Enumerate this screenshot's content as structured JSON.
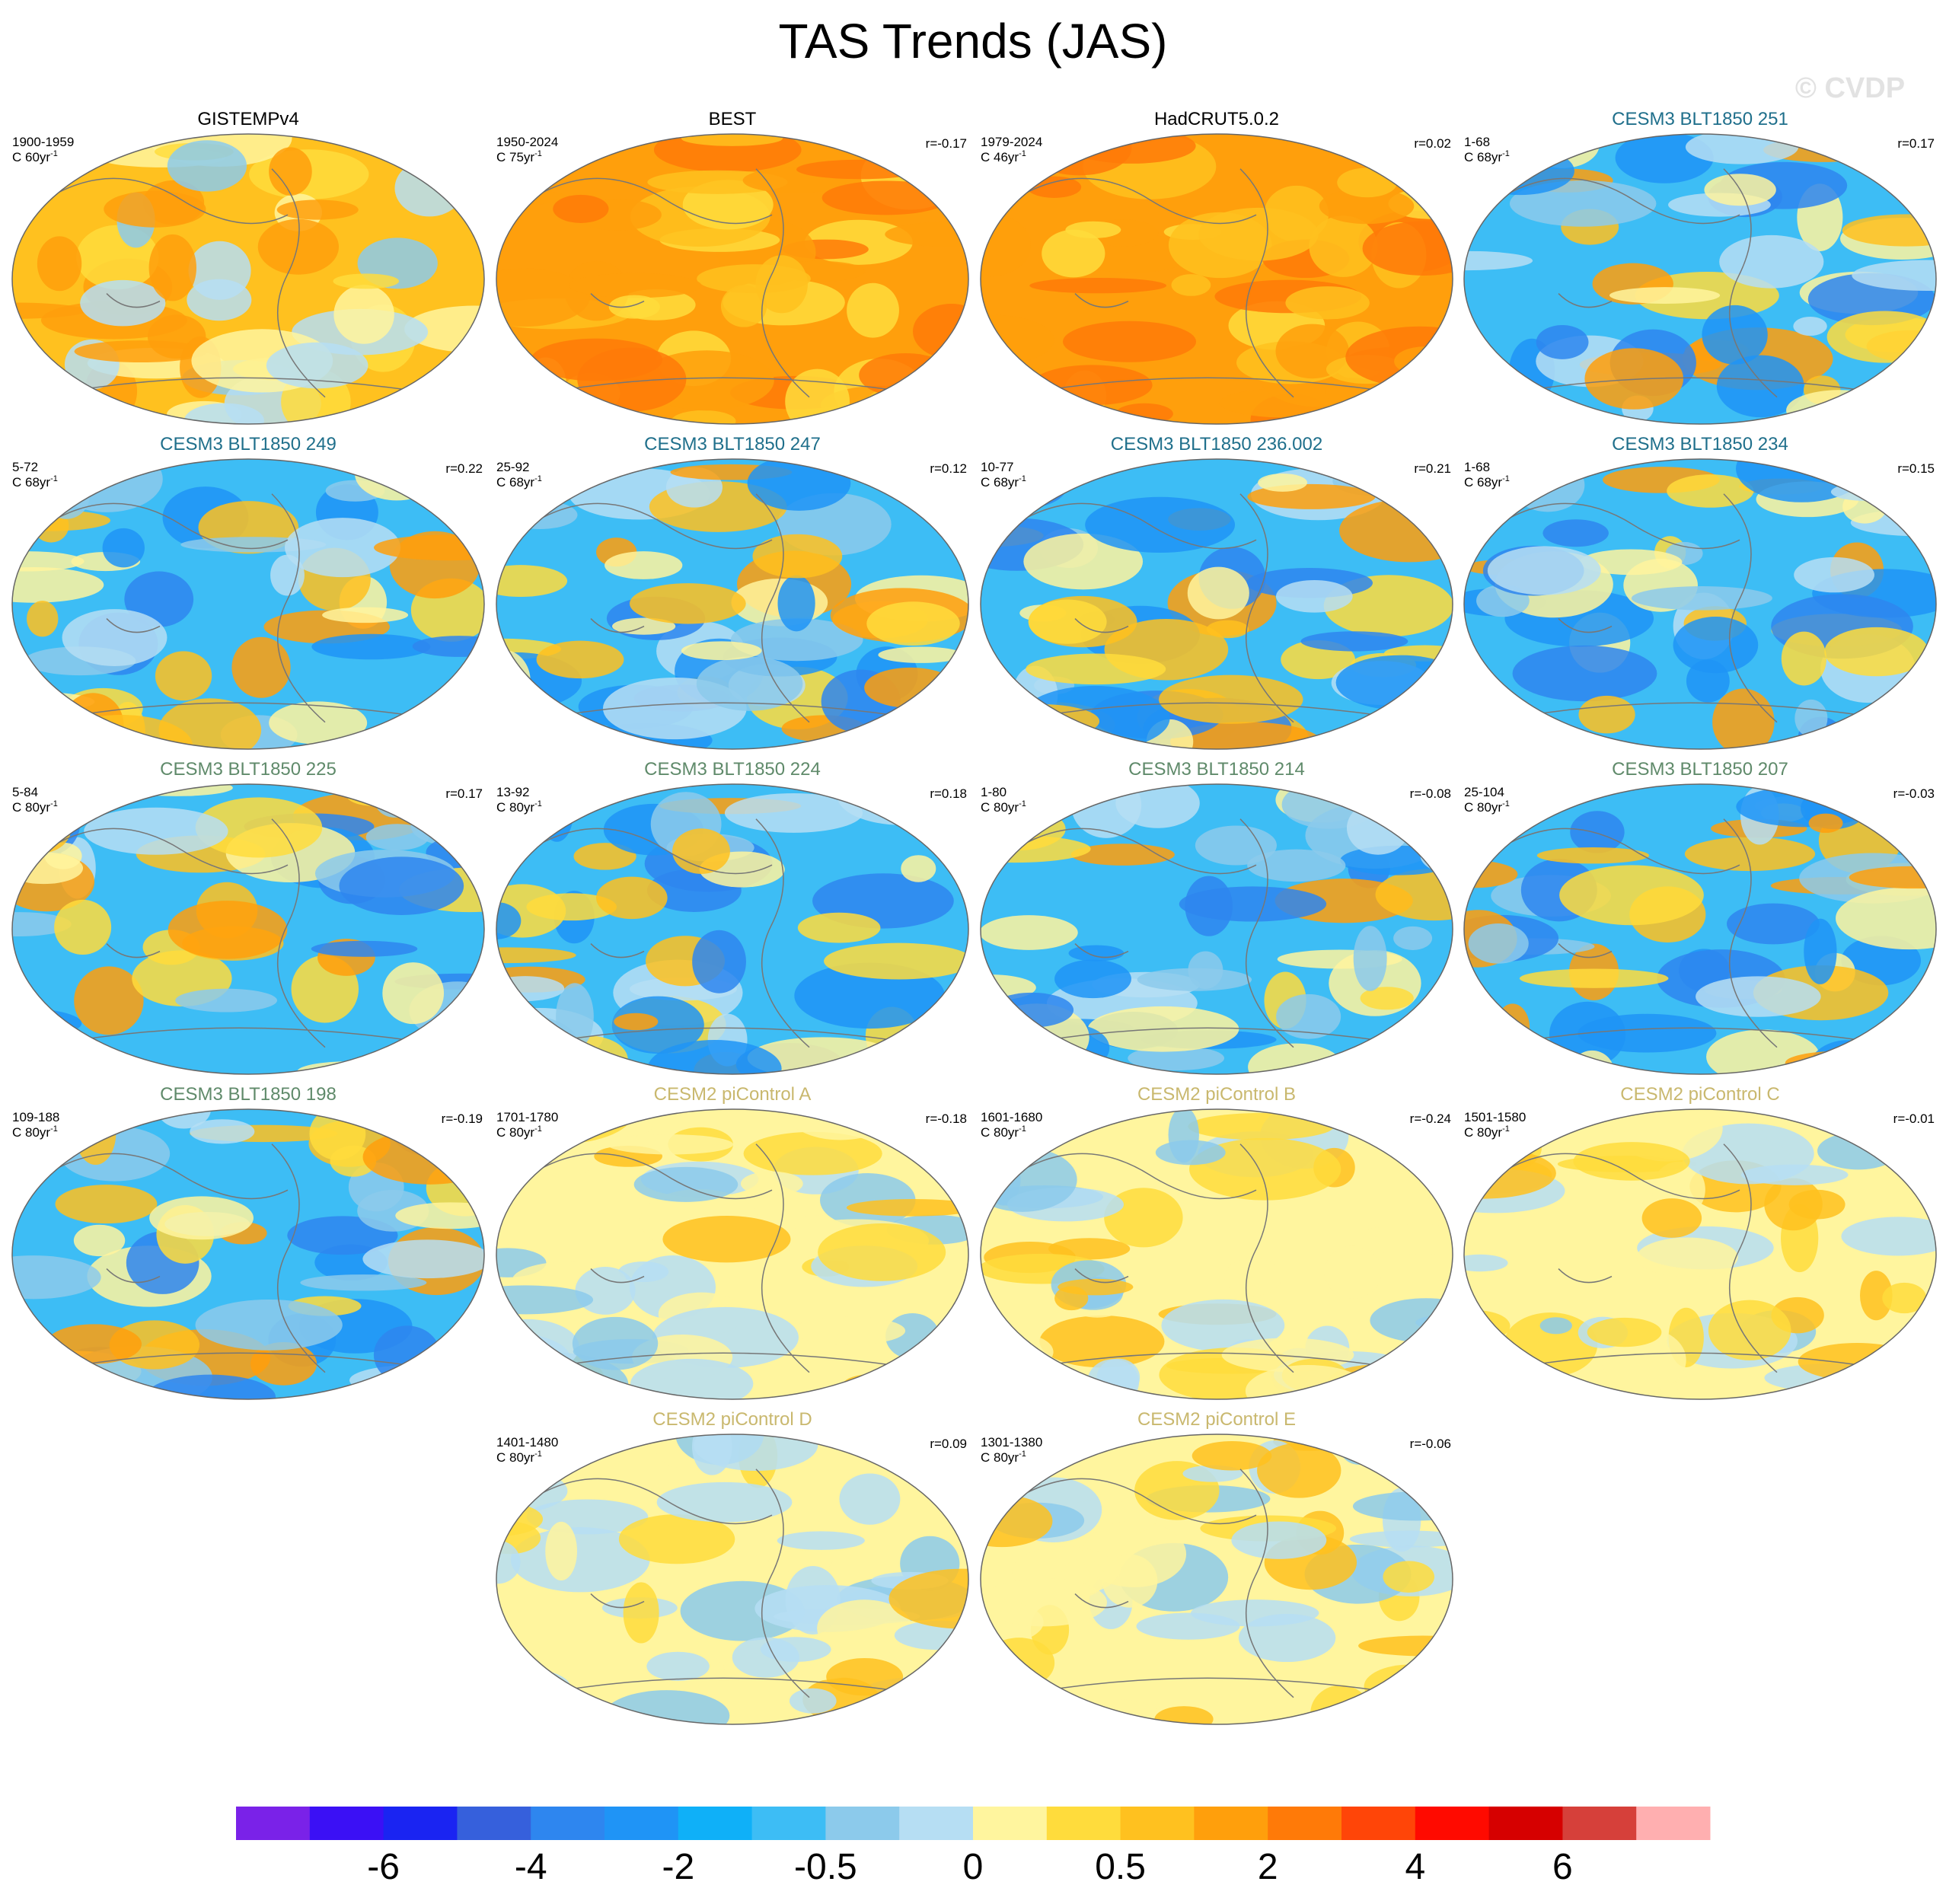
{
  "title": "TAS Trends (JAS)",
  "watermark": "© CVDP",
  "panels": [
    {
      "title": "GISTEMPv4",
      "title_color": "#000000",
      "period": "1900-1959",
      "units": "C 60yr",
      "units_sup": "-1"
    },
    {
      "title": "BEST",
      "title_color": "#000000",
      "period": "1950-2024",
      "units": "C 75yr",
      "units_sup": "-1",
      "r": "r=-0.17"
    },
    {
      "title": "HadCRUT5.0.2",
      "title_color": "#000000",
      "period": "1979-2024",
      "units": "C 46yr",
      "units_sup": "-1",
      "r": "r=0.02"
    },
    {
      "title": "CESM3 BLT1850 251",
      "title_color": "#1f6f8b",
      "period": "1-68",
      "units": "C 68yr",
      "units_sup": "-1",
      "r": "r=0.17"
    },
    {
      "title": "CESM3 BLT1850 249",
      "title_color": "#1f6f8b",
      "period": "5-72",
      "units": "C 68yr",
      "units_sup": "-1",
      "r": "r=0.22"
    },
    {
      "title": "CESM3 BLT1850 247",
      "title_color": "#1f6f8b",
      "period": "25-92",
      "units": "C 68yr",
      "units_sup": "-1",
      "r": "r=0.12"
    },
    {
      "title": "CESM3 BLT1850 236.002",
      "title_color": "#1f6f8b",
      "period": "10-77",
      "units": "C 68yr",
      "units_sup": "-1",
      "r": "r=0.21"
    },
    {
      "title": "CESM3 BLT1850 234",
      "title_color": "#1f6f8b",
      "period": "1-68",
      "units": "C 68yr",
      "units_sup": "-1",
      "r": "r=0.15"
    },
    {
      "title": "CESM3 BLT1850 225",
      "title_color": "#5f8a6a",
      "period": "5-84",
      "units": "C 80yr",
      "units_sup": "-1",
      "r": "r=0.17"
    },
    {
      "title": "CESM3 BLT1850 224",
      "title_color": "#5f8a6a",
      "period": "13-92",
      "units": "C 80yr",
      "units_sup": "-1",
      "r": "r=0.18"
    },
    {
      "title": "CESM3 BLT1850 214",
      "title_color": "#5f8a6a",
      "period": "1-80",
      "units": "C 80yr",
      "units_sup": "-1",
      "r": "r=-0.08"
    },
    {
      "title": "CESM3 BLT1850 207",
      "title_color": "#5f8a6a",
      "period": "25-104",
      "units": "C 80yr",
      "units_sup": "-1",
      "r": "r=-0.03"
    },
    {
      "title": "CESM3 BLT1850 198",
      "title_color": "#5f8a6a",
      "period": "109-188",
      "units": "C 80yr",
      "units_sup": "-1",
      "r": "r=-0.19"
    },
    {
      "title": "CESM2 piControl A",
      "title_color": "#c9b86e",
      "period": "1701-1780",
      "units": "C 80yr",
      "units_sup": "-1",
      "r": "r=-0.18"
    },
    {
      "title": "CESM2 piControl B",
      "title_color": "#c9b86e",
      "period": "1601-1680",
      "units": "C 80yr",
      "units_sup": "-1",
      "r": "r=-0.24"
    },
    {
      "title": "CESM2 piControl C",
      "title_color": "#c9b86e",
      "period": "1501-1580",
      "units": "C 80yr",
      "units_sup": "-1",
      "r": "r=-0.01"
    },
    {
      "title": "CESM2 piControl D",
      "title_color": "#c9b86e",
      "period": "1401-1480",
      "units": "C 80yr",
      "units_sup": "-1",
      "r": "r=0.09"
    },
    {
      "title": "CESM2 piControl E",
      "title_color": "#c9b86e",
      "period": "1301-1380",
      "units": "C 80yr",
      "units_sup": "-1",
      "r": "r=-0.06"
    }
  ],
  "colorbar": {
    "colors": [
      "#7a22e8",
      "#3b10f5",
      "#1a24f2",
      "#3660dc",
      "#2e86ef",
      "#1f94f6",
      "#0fb0f8",
      "#3dbdf5",
      "#8ccaeb",
      "#b6def3",
      "#fff59e",
      "#ffdc3c",
      "#ffc11f",
      "#ff9f0c",
      "#ff7a08",
      "#ff4508",
      "#ff0a00",
      "#d60000",
      "#d6403a",
      "#ffafb0"
    ],
    "labels": [
      "-6",
      "-4",
      "-2",
      "-0.5",
      "0",
      "0.5",
      "2",
      "4",
      "6"
    ]
  }
}
